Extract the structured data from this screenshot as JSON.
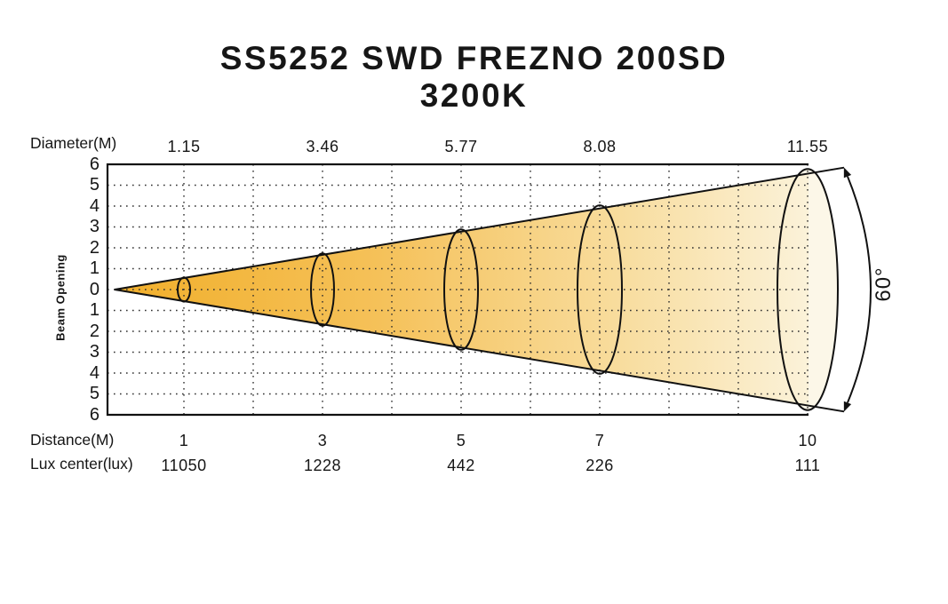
{
  "header": {
    "title": "SS5252 SWD FREZNO 200SD",
    "subtitle": "3200K"
  },
  "chart_data": {
    "type": "area",
    "variant": "photometric-beam-cone-diagram",
    "title": "SS5252 SWD FREZNO 200SD",
    "subtitle": "3200K",
    "beam_angle_label": "60°",
    "beam_angle_deg": 60,
    "y_axis": {
      "label": "Beam Opening",
      "ticks": [
        "6",
        "5",
        "4",
        "3",
        "2",
        "1",
        "0",
        "1",
        "2",
        "3",
        "4",
        "5",
        "6"
      ],
      "max_units": 6,
      "grid": "dotted"
    },
    "x_axis": {
      "grid": "dotted",
      "grid_distances": [
        1,
        2,
        3,
        4,
        5,
        6,
        7,
        8,
        9,
        10
      ]
    },
    "rows": {
      "diameter": {
        "label": "Diameter(M)",
        "values": [
          "1.15",
          "3.46",
          "5.77",
          "8.08",
          "11.55"
        ]
      },
      "distance": {
        "label": "Distance(M)",
        "values": [
          "1",
          "3",
          "5",
          "7",
          "10"
        ]
      },
      "lux": {
        "label": "Lux center(lux)",
        "values": [
          "11050",
          "1228",
          "442",
          "226",
          "111"
        ]
      }
    },
    "series": {
      "distances_m": [
        1,
        3,
        5,
        7,
        10
      ],
      "beam_diameters_m": [
        1.15,
        3.46,
        5.77,
        8.08,
        11.55
      ],
      "lux_center_lux": [
        11050,
        1228,
        442,
        226,
        111
      ]
    },
    "colors": {
      "cone_inner": "#F1AF2B",
      "cone_mid1": "#F5C159",
      "cone_mid2": "#F8DC9C",
      "cone_outer": "#FBF2D9",
      "ellipse_end_fill": "#FCF7E8",
      "line": "#111111",
      "grid_dot": "#2f2f2f"
    }
  }
}
